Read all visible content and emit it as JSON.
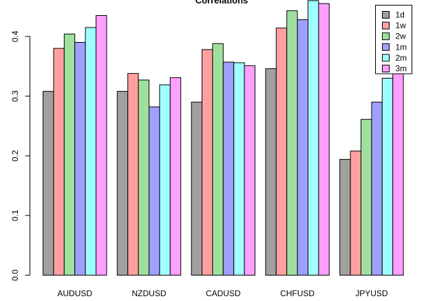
{
  "chart_data": {
    "type": "bar",
    "title": "Correlations",
    "xlabel": "",
    "ylabel": "",
    "categories": [
      "AUDUSD",
      "NZDUSD",
      "CADUSD",
      "CHFUSD",
      "JPYUSD"
    ],
    "ylim": [
      0,
      0.46
    ],
    "yticks": [
      0.0,
      0.1,
      0.2,
      0.3,
      0.4
    ],
    "ytick_labels": [
      "0.0",
      "0.1",
      "0.2",
      "0.3",
      "0.4"
    ],
    "grid": false,
    "legend_position": "top-right",
    "series": [
      {
        "name": "1d",
        "color": "#a0a0a0",
        "values": [
          0.308,
          0.308,
          0.29,
          0.346,
          0.194
        ]
      },
      {
        "name": "1w",
        "color": "#ff9f9f",
        "values": [
          0.38,
          0.338,
          0.378,
          0.414,
          0.208
        ]
      },
      {
        "name": "2w",
        "color": "#9fe09f",
        "values": [
          0.404,
          0.327,
          0.388,
          0.443,
          0.261
        ]
      },
      {
        "name": "1m",
        "color": "#9f9fff",
        "values": [
          0.39,
          0.282,
          0.357,
          0.428,
          0.29
        ]
      },
      {
        "name": "2m",
        "color": "#9fffff",
        "values": [
          0.415,
          0.319,
          0.356,
          0.46,
          0.33
        ]
      },
      {
        "name": "3m",
        "color": "#ff9fff",
        "values": [
          0.435,
          0.331,
          0.351,
          0.455,
          0.374
        ]
      }
    ]
  }
}
